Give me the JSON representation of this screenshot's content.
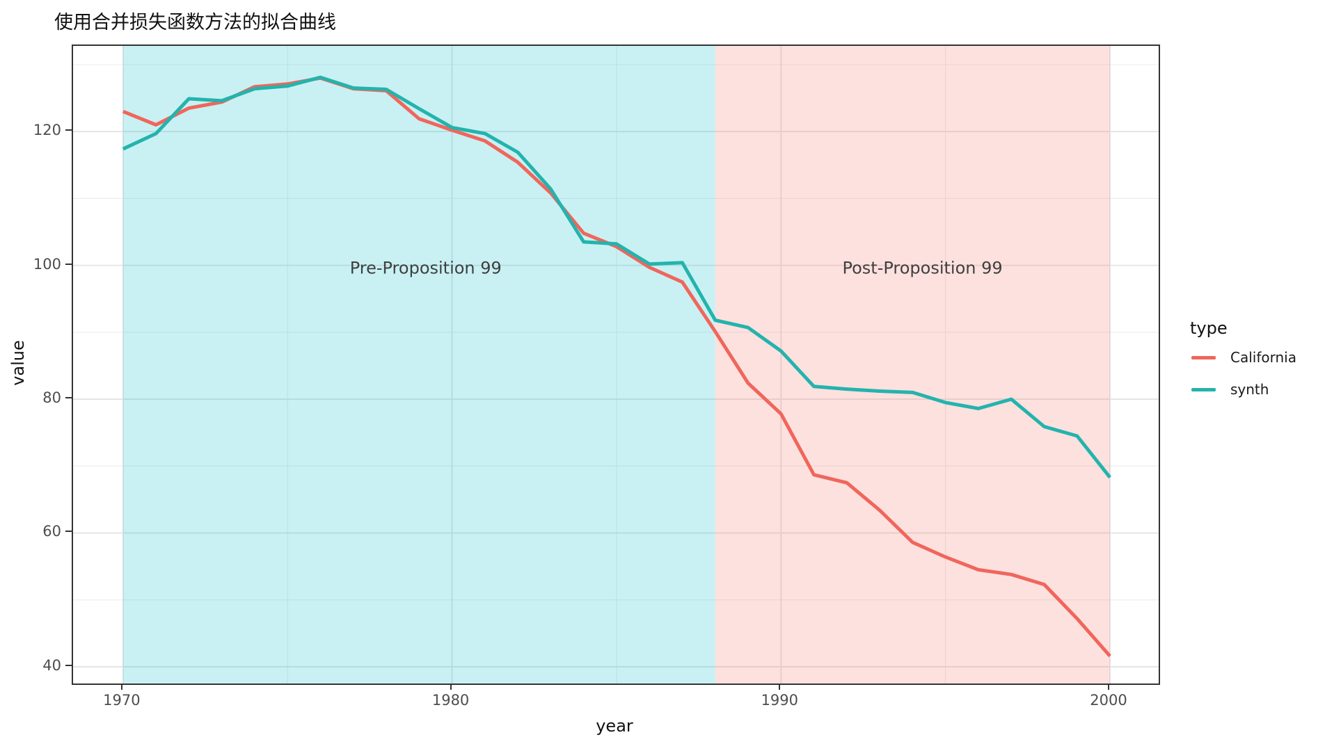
{
  "chart_data": {
    "type": "line",
    "title": "使用合并损失函数方法的拟合曲线",
    "xlabel": "year",
    "ylabel": "value",
    "grid": "on",
    "legend_position": "right",
    "legend_title": "type",
    "xlim": [
      1968.48,
      2001.48
    ],
    "ylim": [
      37.5,
      132.8
    ],
    "x_ticks": [
      1970,
      1980,
      1990,
      2000
    ],
    "x_minor_ticks": [
      1975,
      1985,
      1995
    ],
    "y_ticks": [
      40,
      60,
      80,
      100,
      120
    ],
    "y_minor_ticks": [
      50,
      70,
      90,
      110,
      130
    ],
    "x": [
      1970,
      1971,
      1972,
      1973,
      1974,
      1975,
      1976,
      1977,
      1978,
      1979,
      1980,
      1981,
      1982,
      1983,
      1984,
      1985,
      1986,
      1987,
      1988,
      1989,
      1990,
      1991,
      1992,
      1993,
      1994,
      1995,
      1996,
      1997,
      1998,
      1999,
      2000
    ],
    "series": [
      {
        "name": "California",
        "color": "#F0665C",
        "values": [
          123.0,
          121.0,
          123.5,
          124.4,
          126.7,
          127.1,
          128.0,
          126.4,
          126.1,
          121.9,
          120.2,
          118.6,
          115.4,
          110.8,
          104.8,
          102.8,
          99.7,
          97.5,
          90.1,
          82.4,
          77.8,
          68.7,
          67.5,
          63.4,
          58.6,
          56.4,
          54.5,
          53.8,
          52.3,
          47.2,
          41.6
        ]
      },
      {
        "name": "synth",
        "color": "#24B3AD",
        "values": [
          117.4,
          119.7,
          124.9,
          124.6,
          126.4,
          126.8,
          128.1,
          126.5,
          126.3,
          123.4,
          120.6,
          119.7,
          116.9,
          111.4,
          103.5,
          103.2,
          100.2,
          100.4,
          91.8,
          90.7,
          87.2,
          81.9,
          81.5,
          81.2,
          81.0,
          79.5,
          78.6,
          80.0,
          75.9,
          74.5,
          68.3
        ]
      }
    ],
    "regions": [
      {
        "label": "Pre-Proposition 99",
        "xmin": 1970,
        "xmax": 1988,
        "color": "rgba(0,191,196,0.21)",
        "label_x": 1979.2,
        "label_y": 99.6
      },
      {
        "label": "Post-Proposition 99",
        "xmin": 1988,
        "xmax": 2000,
        "color": "rgba(248,118,109,0.22)",
        "label_x": 1994.3,
        "label_y": 99.6
      }
    ],
    "annotation_color": "#3f3f3f",
    "gridline_major_color": "#e3e3e3",
    "gridline_minor_color": "#ededed"
  },
  "legend": {
    "title": "type",
    "items": [
      {
        "label": "California",
        "color": "#F0665C"
      },
      {
        "label": "synth",
        "color": "#24B3AD"
      }
    ]
  }
}
